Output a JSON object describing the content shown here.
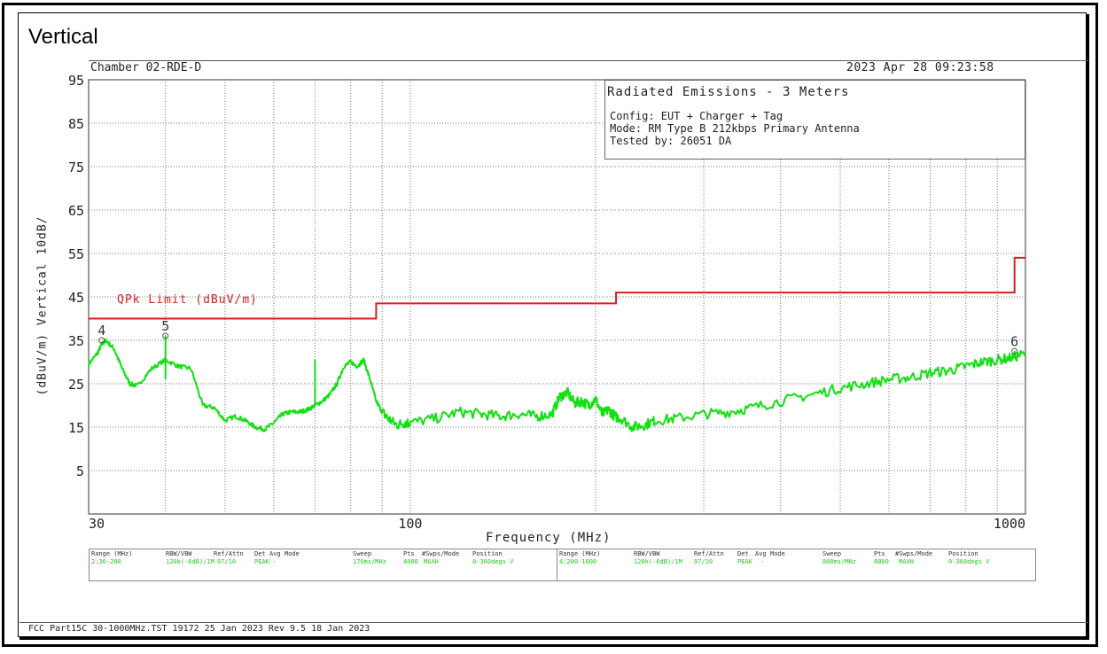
{
  "page": {
    "title": "Vertical"
  },
  "header": {
    "chamber": "Chamber 02-RDE-D",
    "datetime": "2023 Apr 28    09:23:58"
  },
  "legend": {
    "title": "Radiated Emissions - 3 Meters",
    "lines": [
      "Config: EUT + Charger + Tag",
      "Mode: RM Type B 212kbps Primary Antenna",
      "Tested by: 26051 DA"
    ]
  },
  "chart_data": {
    "type": "line",
    "title": "Radiated Emissions - 3 Meters",
    "xlabel": "Frequency (MHz)",
    "ylabel": "(dBuV/m) Vertical  10dB/",
    "x_scale": "log",
    "xlim": [
      30,
      1000
    ],
    "ylim": [
      -5,
      95
    ],
    "x_ticks": [
      30,
      100,
      1000
    ],
    "x_tick_labels": [
      "30",
      "100",
      "1000"
    ],
    "x_minor_gridlines": [
      40,
      50,
      60,
      70,
      80,
      90,
      200,
      300,
      400,
      500,
      600,
      700,
      800,
      900
    ],
    "y_ticks": [
      5,
      15,
      25,
      35,
      45,
      55,
      65,
      75,
      85,
      95
    ],
    "grid": true,
    "limit_line": {
      "name": "QPk Limit (dBuV/m)",
      "color": "#d62020",
      "x": [
        30,
        88,
        88,
        216,
        216,
        960,
        960,
        1000
      ],
      "y": [
        40,
        40,
        43.5,
        43.5,
        46,
        46,
        54,
        54
      ]
    },
    "trace": {
      "color": "#11e011",
      "x": [
        30,
        31,
        31.5,
        32,
        33,
        34,
        35,
        36,
        38,
        40,
        42,
        44,
        46,
        48,
        50,
        52,
        54,
        56,
        58,
        60,
        62,
        64,
        66,
        68,
        70,
        72,
        74,
        76,
        78,
        80,
        82,
        84,
        86,
        88,
        90,
        92,
        95,
        98,
        100,
        110,
        120,
        130,
        140,
        150,
        160,
        170,
        175,
        180,
        185,
        190,
        195,
        200,
        205,
        210,
        215,
        220,
        230,
        240,
        250,
        270,
        300,
        330,
        360,
        400,
        450,
        500,
        550,
        600,
        650,
        700,
        750,
        800,
        850,
        900,
        950,
        1000
      ],
      "y": [
        29.5,
        32,
        34,
        35,
        33,
        28.5,
        25,
        24.5,
        28.5,
        30.5,
        29,
        28.5,
        20,
        19.5,
        16.5,
        17.5,
        16.5,
        15,
        14.5,
        16,
        18,
        18.5,
        18.5,
        19,
        20,
        21,
        22.5,
        25,
        29,
        30,
        29,
        30.5,
        26,
        21,
        18.5,
        17,
        15.5,
        16,
        16,
        17,
        18.5,
        18,
        17.5,
        18,
        17.5,
        18,
        22,
        23,
        20.5,
        21,
        20,
        21.5,
        18,
        19,
        17.5,
        17,
        15,
        15.5,
        16.5,
        17,
        18,
        18.5,
        19.5,
        21,
        22.5,
        24,
        25,
        26,
        26.5,
        27.5,
        28,
        29,
        30,
        30.5,
        31,
        32
      ]
    },
    "spikes": [
      {
        "x": 40,
        "y": 36
      },
      {
        "x": 70,
        "y": 30.5
      }
    ],
    "markers": [
      {
        "label": "4",
        "x": 31.5,
        "y": 35
      },
      {
        "label": "5",
        "x": 40,
        "y": 36
      },
      {
        "label": "6",
        "x": 960,
        "y": 32.5
      }
    ]
  },
  "settings": {
    "left": {
      "headers": [
        "Range (MHz)",
        "RBW/VBW",
        "Ref/Attn",
        "Det",
        "Avg Mode",
        "Sweep",
        "Pts",
        "#Swps/Mode",
        "Position"
      ],
      "values": [
        "2:30-200",
        "120k(-6dB)/1M",
        "97/10",
        "PEAK",
        "-",
        "170ms/MHz",
        "4000",
        "MAXH",
        "0-360degs V"
      ]
    },
    "right": {
      "headers": [
        "Range (MHz)",
        "RBW/VBW",
        "Ref/Attn",
        "Det",
        "Avg Mode",
        "Sweep",
        "Pts",
        "#Swps/Mode",
        "Position"
      ],
      "values": [
        "4:200-1000",
        "120k(-6dB)/1M",
        "97/10",
        "PEAK",
        "-",
        "800ms/MHz",
        "8000",
        "MAXH",
        "0-360degs V"
      ]
    }
  },
  "footer": {
    "text": "FCC Part15C 30-1000MHz.TST 19172 25 Jan 2023 Rev 9.5 18 Jan 2023"
  }
}
